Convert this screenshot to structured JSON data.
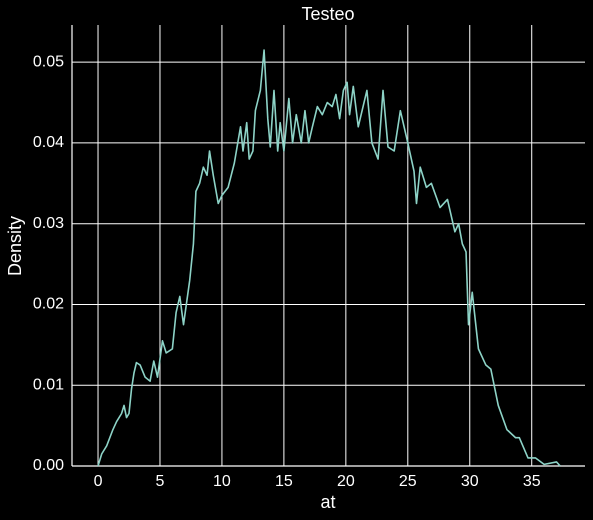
{
  "chart_data": {
    "type": "line",
    "title": "Testeo",
    "x_label": "at",
    "y_label": "Density",
    "series": [
      {
        "name": "at",
        "color": "#8dd3c7",
        "x": [
          0,
          0.3,
          0.7,
          1.2,
          1.5,
          1.9,
          2.1,
          2.3,
          2.5,
          2.7,
          2.9,
          3.1,
          3.4,
          3.8,
          4.2,
          4.5,
          4.8,
          5.2,
          5.5,
          6,
          6.3,
          6.6,
          6.9,
          7.4,
          7.7,
          7.9,
          8.2,
          8.5,
          8.8,
          9,
          9.3,
          9.7,
          10,
          10.5,
          11,
          11.5,
          11.7,
          12,
          12.2,
          12.5,
          12.7,
          13.1,
          13.4,
          13.7,
          13.9,
          14.2,
          14.5,
          14.7,
          15,
          15.4,
          15.7,
          16,
          16.4,
          16.7,
          17,
          17.3,
          17.7,
          18.1,
          18.5,
          18.9,
          19.2,
          19.5,
          19.8,
          20.1,
          20.3,
          20.6,
          21,
          21.7,
          22.1,
          22.6,
          23,
          23.4,
          23.9,
          24.4,
          25,
          25.5,
          25.7,
          26,
          26.5,
          26.9,
          27.6,
          28.2,
          28.8,
          29.1,
          29.4,
          29.7,
          29.9,
          30.2,
          30.7,
          31.3,
          31.7,
          32.3,
          33,
          33.7,
          34,
          34.7,
          35.3,
          36,
          37,
          37.3
        ],
        "values": [
          0,
          0.0015,
          0.0025,
          0.0045,
          0.0055,
          0.0065,
          0.0075,
          0.006,
          0.0065,
          0.0095,
          0.0115,
          0.0128,
          0.0125,
          0.011,
          0.0105,
          0.013,
          0.011,
          0.0155,
          0.014,
          0.0145,
          0.019,
          0.021,
          0.0175,
          0.023,
          0.0275,
          0.034,
          0.035,
          0.037,
          0.036,
          0.039,
          0.036,
          0.0325,
          0.0335,
          0.0345,
          0.0375,
          0.042,
          0.039,
          0.0425,
          0.038,
          0.039,
          0.044,
          0.0465,
          0.0515,
          0.043,
          0.0395,
          0.0465,
          0.039,
          0.0425,
          0.039,
          0.0455,
          0.04,
          0.0435,
          0.04,
          0.044,
          0.04,
          0.042,
          0.0445,
          0.0435,
          0.045,
          0.0445,
          0.046,
          0.043,
          0.0465,
          0.0475,
          0.0435,
          0.047,
          0.042,
          0.0465,
          0.04,
          0.038,
          0.0465,
          0.0395,
          0.039,
          0.044,
          0.04,
          0.0365,
          0.0325,
          0.037,
          0.0345,
          0.035,
          0.032,
          0.033,
          0.029,
          0.03,
          0.0275,
          0.0265,
          0.0175,
          0.0215,
          0.0145,
          0.0125,
          0.012,
          0.0075,
          0.0045,
          0.0035,
          0.0035,
          0.001,
          0.001,
          0.0002,
          0.0005,
          0
        ]
      }
    ],
    "xlim": [
      -2.1,
      39.3
    ],
    "ylim": [
      0,
      0.0546
    ],
    "xticks": [
      0,
      5,
      10,
      15,
      20,
      25,
      30,
      35
    ],
    "yticks": [
      {
        "value": 0,
        "label": "0.00"
      },
      {
        "value": 0.01,
        "label": "0.01"
      },
      {
        "value": 0.02,
        "label": "0.02"
      },
      {
        "value": 0.03,
        "label": "0.03"
      },
      {
        "value": 0.04,
        "label": "0.04"
      },
      {
        "value": 0.05,
        "label": "0.05"
      }
    ],
    "grid": true
  }
}
